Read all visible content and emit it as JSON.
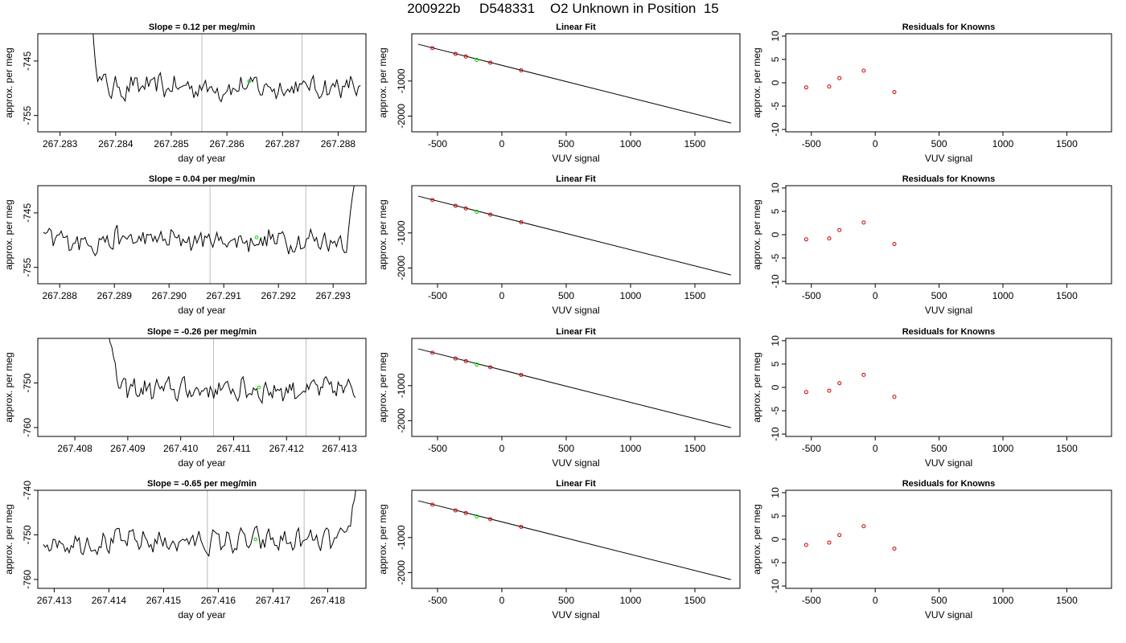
{
  "main_title": "200922b     D548331    O2 Unknown in Position  15",
  "colors": {
    "line": "#000000",
    "marker": "#cc0000",
    "highlight": "#00dd00",
    "refline": "#bbbbbb"
  },
  "chart_data": [
    {
      "type": "line",
      "title": "Slope =  0.12  per meg/min",
      "xlabel": "day of year",
      "ylabel": "approx. per meg",
      "xlim": [
        267.2826,
        267.2885
      ],
      "ylim": [
        -758,
        -740
      ],
      "xticks": [
        267.283,
        267.284,
        267.285,
        267.286,
        267.287,
        267.288
      ],
      "xtick_labels": [
        "267.283",
        "267.284",
        "267.285",
        "267.286",
        "267.287",
        "267.288"
      ],
      "yticks": [
        -745,
        -755
      ],
      "ytick_labels": [
        "-745",
        "-755"
      ],
      "x_start": 267.2835,
      "x_end": 267.2884,
      "n": 140,
      "baseline": -749.8,
      "amplitude": 2.3,
      "spike": "start",
      "spike_level": -739,
      "vlines": [
        267.28555,
        267.28735
      ],
      "highlight": {
        "x": 267.2864,
        "y": -748.7
      }
    },
    {
      "type": "scatter",
      "title": "Linear Fit",
      "xlabel": "VUV signal",
      "ylabel": "approx. per meg",
      "xlim": [
        -700,
        1850
      ],
      "ylim": [
        -2450,
        350
      ],
      "xticks": [
        -500,
        0,
        500,
        1000,
        1500
      ],
      "xtick_labels": [
        "-500",
        "0",
        "500",
        "1000",
        "1500"
      ],
      "yticks": [
        -1000,
        -2000
      ],
      "ytick_labels": [
        "-1000",
        "-2000"
      ],
      "fit_line": [
        [
          -650,
          50
        ],
        [
          1780,
          -2200
        ]
      ],
      "points": [
        [
          -540,
          -60
        ],
        [
          -360,
          -225
        ],
        [
          -280,
          -300
        ],
        [
          -90,
          -475
        ],
        [
          150,
          -695
        ]
      ],
      "highlight": [
        -195,
        -397
      ]
    },
    {
      "type": "scatter",
      "title": "Residuals for Knowns",
      "xlabel": "VUV signal",
      "ylabel": "approx. per meg",
      "xlim": [
        -700,
        1850
      ],
      "ylim": [
        -10.5,
        10.5
      ],
      "xticks": [
        -500,
        0,
        500,
        1000,
        1500
      ],
      "xtick_labels": [
        "-500",
        "0",
        "500",
        "1000",
        "1500"
      ],
      "yticks": [
        10,
        5,
        0,
        -5,
        -10
      ],
      "ytick_labels": [
        "10",
        "5",
        "0",
        "-5",
        "-10"
      ],
      "points": [
        [
          -540,
          -1.0
        ],
        [
          -360,
          -0.8
        ],
        [
          -280,
          1.0
        ],
        [
          -90,
          2.6
        ],
        [
          150,
          -2.0
        ]
      ]
    },
    {
      "type": "line",
      "title": "Slope =  0.04  per meg/min",
      "xlabel": "day of year",
      "ylabel": "approx. per meg",
      "xlim": [
        267.2876,
        267.2936
      ],
      "ylim": [
        -758,
        -740
      ],
      "xticks": [
        267.288,
        267.289,
        267.29,
        267.291,
        267.292,
        267.293
      ],
      "xtick_labels": [
        "267.288",
        "267.289",
        "267.290",
        "267.291",
        "267.292",
        "267.293"
      ],
      "yticks": [
        -745,
        -755
      ],
      "ytick_labels": [
        "-745",
        "-755"
      ],
      "x_start": 267.2877,
      "x_end": 267.2935,
      "n": 160,
      "baseline": -750.0,
      "amplitude": 2.3,
      "spike": "end",
      "spike_level": -739,
      "vlines": [
        267.29075,
        267.2925
      ],
      "highlight": {
        "x": 267.2916,
        "y": -749.5
      }
    },
    {
      "type": "scatter",
      "title": "Linear Fit",
      "xlabel": "VUV signal",
      "ylabel": "approx. per meg",
      "xlim": [
        -700,
        1850
      ],
      "ylim": [
        -2450,
        350
      ],
      "xticks": [
        -500,
        0,
        500,
        1000,
        1500
      ],
      "xtick_labels": [
        "-500",
        "0",
        "500",
        "1000",
        "1500"
      ],
      "yticks": [
        -1000,
        -2000
      ],
      "ytick_labels": [
        "-1000",
        "-2000"
      ],
      "fit_line": [
        [
          -650,
          50
        ],
        [
          1780,
          -2200
        ]
      ],
      "points": [
        [
          -540,
          -60
        ],
        [
          -360,
          -225
        ],
        [
          -280,
          -300
        ],
        [
          -90,
          -475
        ],
        [
          150,
          -695
        ]
      ],
      "highlight": [
        -195,
        -397
      ]
    },
    {
      "type": "scatter",
      "title": "Residuals for Knowns",
      "xlabel": "VUV signal",
      "ylabel": "approx. per meg",
      "xlim": [
        -700,
        1850
      ],
      "ylim": [
        -10.5,
        10.5
      ],
      "xticks": [
        -500,
        0,
        500,
        1000,
        1500
      ],
      "xtick_labels": [
        "-500",
        "0",
        "500",
        "1000",
        "1500"
      ],
      "yticks": [
        10,
        5,
        0,
        -5,
        -10
      ],
      "ytick_labels": [
        "10",
        "5",
        "0",
        "-5",
        "-10"
      ],
      "points": [
        [
          -540,
          -1.0
        ],
        [
          -360,
          -0.8
        ],
        [
          -280,
          1.0
        ],
        [
          -90,
          2.6
        ],
        [
          150,
          -2.0
        ]
      ]
    },
    {
      "type": "line",
      "title": "Slope =  -0.26  per meg/min",
      "xlabel": "day of year",
      "ylabel": "approx. per meg",
      "xlim": [
        267.4073,
        267.4135
      ],
      "ylim": [
        -762,
        -740
      ],
      "xticks": [
        267.408,
        267.409,
        267.41,
        267.411,
        267.412,
        267.413
      ],
      "xtick_labels": [
        "267.408",
        "267.409",
        "267.410",
        "267.411",
        "267.412",
        "267.413"
      ],
      "yticks": [
        -750,
        -760
      ],
      "ytick_labels": [
        "-750",
        "-760"
      ],
      "x_start": 267.4086,
      "x_end": 267.4133,
      "n": 145,
      "baseline": -751.5,
      "amplitude": 2.6,
      "spike": "start",
      "spike_level": -740,
      "vlines": [
        267.41062,
        267.41237
      ],
      "highlight": {
        "x": 267.41148,
        "y": -751.0
      }
    },
    {
      "type": "scatter",
      "title": "Linear Fit",
      "xlabel": "VUV signal",
      "ylabel": "approx. per meg",
      "xlim": [
        -700,
        1850
      ],
      "ylim": [
        -2450,
        350
      ],
      "xticks": [
        -500,
        0,
        500,
        1000,
        1500
      ],
      "xtick_labels": [
        "-500",
        "0",
        "500",
        "1000",
        "1500"
      ],
      "yticks": [
        -1000,
        -2000
      ],
      "ytick_labels": [
        "-1000",
        "-2000"
      ],
      "fit_line": [
        [
          -650,
          50
        ],
        [
          1780,
          -2200
        ]
      ],
      "points": [
        [
          -540,
          -60
        ],
        [
          -360,
          -225
        ],
        [
          -280,
          -300
        ],
        [
          -90,
          -475
        ],
        [
          150,
          -695
        ]
      ],
      "highlight": [
        -195,
        -397
      ]
    },
    {
      "type": "scatter",
      "title": "Residuals for Knowns",
      "xlabel": "VUV signal",
      "ylabel": "approx. per meg",
      "xlim": [
        -700,
        1850
      ],
      "ylim": [
        -10.5,
        10.5
      ],
      "xticks": [
        -500,
        0,
        500,
        1000,
        1500
      ],
      "xtick_labels": [
        "-500",
        "0",
        "500",
        "1000",
        "1500"
      ],
      "yticks": [
        10,
        5,
        0,
        -5,
        -10
      ],
      "ytick_labels": [
        "10",
        "5",
        "0",
        "-5",
        "-10"
      ],
      "points": [
        [
          -540,
          -1.0
        ],
        [
          -360,
          -0.7
        ],
        [
          -280,
          0.9
        ],
        [
          -90,
          2.7
        ],
        [
          150,
          -2.0
        ]
      ]
    },
    {
      "type": "line",
      "title": "Slope =  -0.65  per meg/min",
      "xlabel": "day of year",
      "ylabel": "approx. per meg",
      "xlim": [
        267.4127,
        267.4187
      ],
      "ylim": [
        -762,
        -740
      ],
      "xticks": [
        267.413,
        267.414,
        267.415,
        267.416,
        267.417,
        267.418
      ],
      "xtick_labels": [
        "267.413",
        "267.414",
        "267.415",
        "267.416",
        "267.417",
        "267.418"
      ],
      "yticks": [
        -740,
        -750,
        -760
      ],
      "ytick_labels": [
        "-740",
        "-750",
        "-760"
      ],
      "x_start": 267.4128,
      "x_end": 267.4186,
      "n": 160,
      "baseline": -751.5,
      "amplitude": 2.6,
      "spike": "end",
      "spike_level": -740,
      "vlines": [
        267.4158,
        267.41757
      ],
      "highlight": {
        "x": 267.41668,
        "y": -751.0
      }
    },
    {
      "type": "scatter",
      "title": "Linear Fit",
      "xlabel": "VUV signal",
      "ylabel": "approx. per meg",
      "xlim": [
        -700,
        1850
      ],
      "ylim": [
        -2450,
        350
      ],
      "xticks": [
        -500,
        0,
        500,
        1000,
        1500
      ],
      "xtick_labels": [
        "-500",
        "0",
        "500",
        "1000",
        "1500"
      ],
      "yticks": [
        -1000,
        -2000
      ],
      "ytick_labels": [
        "-1000",
        "-2000"
      ],
      "fit_line": [
        [
          -650,
          50
        ],
        [
          1780,
          -2200
        ]
      ],
      "points": [
        [
          -540,
          -60
        ],
        [
          -360,
          -225
        ],
        [
          -280,
          -300
        ],
        [
          -90,
          -475
        ],
        [
          150,
          -695
        ]
      ],
      "highlight": [
        -195,
        -397
      ]
    },
    {
      "type": "scatter",
      "title": "Residuals for Knowns",
      "xlabel": "VUV signal",
      "ylabel": "approx. per meg",
      "xlim": [
        -700,
        1850
      ],
      "ylim": [
        -10.5,
        10.5
      ],
      "xticks": [
        -500,
        0,
        500,
        1000,
        1500
      ],
      "xtick_labels": [
        "-500",
        "0",
        "500",
        "1000",
        "1500"
      ],
      "yticks": [
        10,
        5,
        0,
        -5,
        -10
      ],
      "ytick_labels": [
        "10",
        "5",
        "0",
        "-5",
        "-10"
      ],
      "points": [
        [
          -540,
          -1.2
        ],
        [
          -360,
          -0.7
        ],
        [
          -280,
          0.9
        ],
        [
          -90,
          2.8
        ],
        [
          150,
          -2.0
        ]
      ]
    }
  ]
}
